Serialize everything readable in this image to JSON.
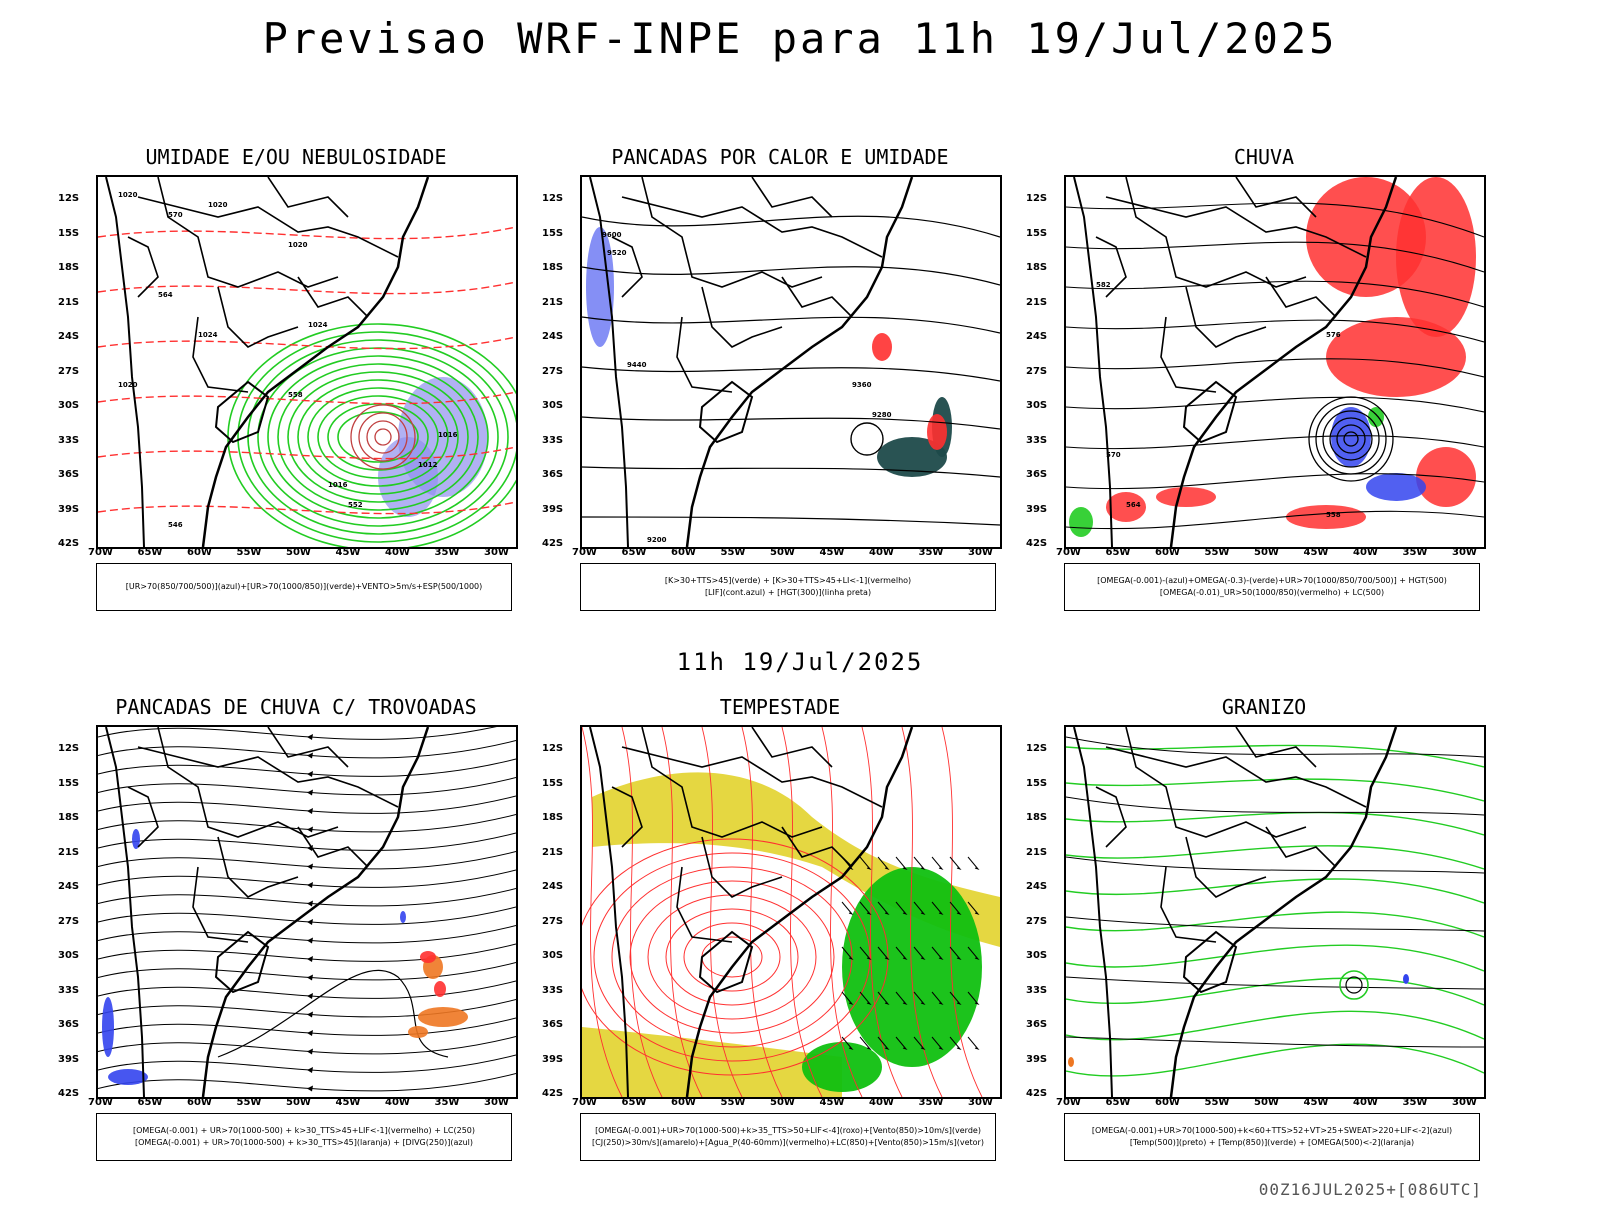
{
  "header": {
    "title": "Previsao WRF-INPE  para 11h 19/Jul/2025"
  },
  "middle": {
    "title": "11h 19/Jul/2025"
  },
  "footer": {
    "run": "00Z16JUL2025+[086UTC]"
  },
  "axes": {
    "lat_labels": [
      "12S",
      "15S",
      "18S",
      "21S",
      "24S",
      "27S",
      "30S",
      "33S",
      "36S",
      "39S",
      "42S"
    ],
    "lon_labels": [
      "70W",
      "65W",
      "60W",
      "55W",
      "50W",
      "45W",
      "40W",
      "35W",
      "30W"
    ]
  },
  "panels": [
    {
      "title": "UMIDADE E/OU NEBULOSIDADE",
      "legend": [
        "[UR>70(850/700/500)](azul)+[UR>70(1000/850)](verde)+VENTO>5m/s+ESP(500/1000)"
      ]
    },
    {
      "title": "PANCADAS POR CALOR E UMIDADE",
      "legend": [
        "[K>30+TTS>45](verde) + [K>30+TTS>45+LI<-1](vermelho)",
        "[LIF](cont.azul) + [HGT(300)](linha preta)"
      ]
    },
    {
      "title": "CHUVA",
      "legend": [
        "[OMEGA(-0.001)-(azul)+OMEGA(-0.3)-(verde)+UR>70(1000/850/700/500)] + HGT(500)",
        "[OMEGA(-0.01)_UR>50(1000/850)(vermelho) + LC(500)"
      ]
    },
    {
      "title": "PANCADAS DE CHUVA C/ TROVOADAS",
      "legend": [
        "[OMEGA(-0.001) + UR>70(1000-500) + k>30_TTS>45+LIF<-1](vermelho) + LC(250)",
        "[OMEGA(-0.001) + UR>70(1000-500) + k>30_TTS>45](laranja) + [DIVG(250)](azul)"
      ]
    },
    {
      "title": "TEMPESTADE",
      "legend": [
        "[OMEGA(-0.001)+UR>70(1000-500)+k>35_TTS>50+LIF<-4](roxo)+[Vento(850)>10m/s](verde)",
        "[CJ(250)>30m/s](amarelo)+[Agua_P(40-60mm)](vermelho)+LC(850)+[Vento(850)>15m/s](vetor)"
      ]
    },
    {
      "title": "GRANIZO",
      "legend": [
        "[OMEGA(-0.001)+UR>70(1000-500)+k<60+TTS>52+VT>25+SWEAT>220+LIF<-2](azul)",
        "[Temp(500)](preto) + [Temp(850)](verde) + [OMEGA(500)<-2](laranja)"
      ]
    }
  ],
  "contour_labels": {
    "p1": [
      "1020",
      "1020",
      "1020",
      "1024",
      "1024",
      "1016",
      "1012",
      "1016",
      "1020",
      "570",
      "564",
      "558",
      "552",
      "546"
    ],
    "p2": [
      "9600",
      "9520",
      "9440",
      "9360",
      "9280",
      "9200"
    ],
    "p3": [
      "582",
      "576",
      "570",
      "564",
      "558"
    ]
  },
  "colors": {
    "red": "#ff3030",
    "green": "#22cc22",
    "blue": "#3344ee",
    "yellow": "#e0d020",
    "orange": "#ee7722",
    "purple": "#9090ee",
    "teal": "#1e4a4a"
  }
}
